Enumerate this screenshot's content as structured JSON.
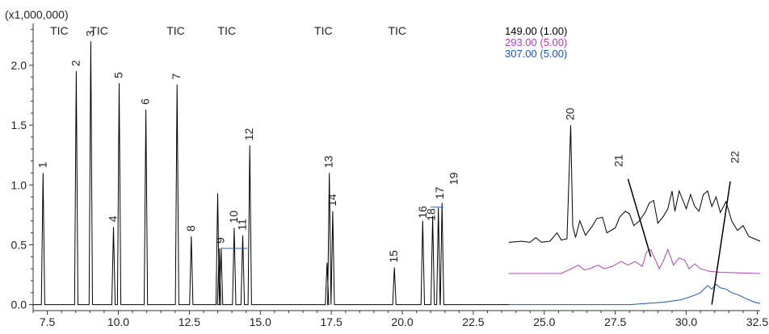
{
  "chart_data": {
    "type": "line",
    "y_multiplier_label": "(x1,000,000)",
    "xlim": [
      7.0,
      32.6
    ],
    "ylim": [
      -0.05,
      2.35
    ],
    "x_ticks": [
      7.5,
      10.0,
      12.5,
      15.0,
      17.5,
      20.0,
      22.5,
      25.0,
      27.5,
      30.0,
      32.5
    ],
    "x_tick_labels": [
      "7.5",
      "10.0",
      "12.5",
      "15.0",
      "17.5",
      "20.0",
      "22.5",
      "25.0",
      "27.5",
      "30.0",
      "32.5"
    ],
    "y_ticks": [
      0.0,
      0.5,
      1.0,
      1.5,
      2.0
    ],
    "y_tick_labels": [
      "0.0",
      "0.5",
      "1.0",
      "1.5",
      "2.0"
    ],
    "segment_labels": [
      {
        "text": "TIC",
        "x": 7.6
      },
      {
        "text": "TIC",
        "x": 9.0
      },
      {
        "text": "TIC",
        "x": 11.7
      },
      {
        "text": "TIC",
        "x": 13.5
      },
      {
        "text": "TIC",
        "x": 16.9
      },
      {
        "text": "TIC",
        "x": 19.5
      }
    ],
    "legend": [
      {
        "text": "149.00 (1.00)",
        "color": "#000000"
      },
      {
        "text": "293.00 (5.00)",
        "color": "#b040b0"
      },
      {
        "text": "307.00 (5.00)",
        "color": "#1a55b5"
      }
    ],
    "colors": {
      "tic": "#000000",
      "ion149": "#000000",
      "ion293": "#b040b0",
      "ion307": "#1a55b5",
      "marker": "#2a5fb0"
    },
    "peaks": [
      {
        "label": "1",
        "x": 7.35,
        "y": 1.1
      },
      {
        "label": "2",
        "x": 8.52,
        "y": 1.95
      },
      {
        "label": "3",
        "x": 9.03,
        "y": 2.2
      },
      {
        "label": "4",
        "x": 9.83,
        "y": 0.65
      },
      {
        "label": "5",
        "x": 10.03,
        "y": 1.85
      },
      {
        "label": "6",
        "x": 10.97,
        "y": 1.63
      },
      {
        "label": "7",
        "x": 12.07,
        "y": 1.84
      },
      {
        "label": "8",
        "x": 12.57,
        "y": 0.57
      },
      {
        "label": "9",
        "x": 13.62,
        "y": 0.47
      },
      {
        "label": "10",
        "x": 14.08,
        "y": 0.64
      },
      {
        "label": "11",
        "x": 14.38,
        "y": 0.58
      },
      {
        "label": "12",
        "x": 14.63,
        "y": 1.33
      },
      {
        "label": "13",
        "x": 17.43,
        "y": 1.1
      },
      {
        "label": "14",
        "x": 17.55,
        "y": 0.78
      },
      {
        "label": "15",
        "x": 19.72,
        "y": 0.31
      },
      {
        "label": "16",
        "x": 20.72,
        "y": 0.7
      },
      {
        "label": "17",
        "x": 21.27,
        "y": 0.81
      },
      {
        "label": "18",
        "x": 21.07,
        "y": 0.74
      },
      {
        "label": "19",
        "x": 21.4,
        "y": 0.85
      },
      {
        "label": "20",
        "x": 25.93,
        "y": 1.5
      },
      {
        "label": "21",
        "x": 28.05,
        "y": 1.05
      },
      {
        "label": "22",
        "x": 31.9,
        "y": 0.88
      }
    ],
    "extra_peaks": [
      {
        "x": 13.5,
        "y": 0.93
      },
      {
        "x": 13.55,
        "y": 0.47
      },
      {
        "x": 17.35,
        "y": 0.35
      }
    ],
    "offset_traces": [
      {
        "name": "149.00",
        "color": "#000000",
        "baseline": 0.52,
        "x_start": 23.75,
        "x_end": 32.6,
        "points": [
          [
            23.75,
            0.52
          ],
          [
            24.2,
            0.53
          ],
          [
            24.5,
            0.52
          ],
          [
            24.7,
            0.56
          ],
          [
            24.9,
            0.52
          ],
          [
            25.2,
            0.53
          ],
          [
            25.45,
            0.6
          ],
          [
            25.6,
            0.54
          ],
          [
            25.8,
            0.55
          ],
          [
            25.93,
            1.5
          ],
          [
            26.0,
            0.66
          ],
          [
            26.1,
            0.56
          ],
          [
            26.25,
            0.7
          ],
          [
            26.45,
            0.58
          ],
          [
            26.7,
            0.66
          ],
          [
            26.85,
            0.72
          ],
          [
            27.05,
            0.73
          ],
          [
            27.2,
            0.6
          ],
          [
            27.5,
            0.64
          ],
          [
            27.65,
            0.73
          ],
          [
            27.85,
            0.78
          ],
          [
            28.0,
            0.76
          ],
          [
            28.15,
            0.66
          ],
          [
            28.35,
            0.7
          ],
          [
            28.55,
            0.77
          ],
          [
            28.7,
            0.85
          ],
          [
            28.85,
            0.87
          ],
          [
            29.0,
            0.68
          ],
          [
            29.2,
            0.74
          ],
          [
            29.35,
            0.8
          ],
          [
            29.5,
            0.95
          ],
          [
            29.6,
            0.78
          ],
          [
            29.75,
            0.95
          ],
          [
            29.9,
            0.86
          ],
          [
            30.0,
            0.8
          ],
          [
            30.15,
            0.92
          ],
          [
            30.3,
            0.82
          ],
          [
            30.45,
            0.78
          ],
          [
            30.6,
            0.92
          ],
          [
            30.75,
            0.95
          ],
          [
            30.9,
            0.82
          ],
          [
            31.05,
            0.9
          ],
          [
            31.2,
            0.77
          ],
          [
            31.4,
            0.86
          ],
          [
            31.6,
            0.7
          ],
          [
            31.8,
            0.62
          ],
          [
            32.0,
            0.66
          ],
          [
            32.2,
            0.57
          ],
          [
            32.6,
            0.53
          ]
        ]
      },
      {
        "name": "293.00",
        "color": "#b040b0",
        "baseline": 0.26,
        "x_start": 23.75,
        "x_end": 32.6,
        "points": [
          [
            23.75,
            0.26
          ],
          [
            25.6,
            0.26
          ],
          [
            25.95,
            0.3
          ],
          [
            26.2,
            0.33
          ],
          [
            26.4,
            0.29
          ],
          [
            26.6,
            0.3
          ],
          [
            26.9,
            0.33
          ],
          [
            27.1,
            0.3
          ],
          [
            27.4,
            0.32
          ],
          [
            27.7,
            0.36
          ],
          [
            27.95,
            0.33
          ],
          [
            28.2,
            0.36
          ],
          [
            28.45,
            0.32
          ],
          [
            28.6,
            0.44
          ],
          [
            28.75,
            0.46
          ],
          [
            28.9,
            0.38
          ],
          [
            29.05,
            0.3
          ],
          [
            29.2,
            0.37
          ],
          [
            29.35,
            0.46
          ],
          [
            29.55,
            0.33
          ],
          [
            29.75,
            0.39
          ],
          [
            29.95,
            0.37
          ],
          [
            30.1,
            0.3
          ],
          [
            30.3,
            0.34
          ],
          [
            30.5,
            0.3
          ],
          [
            30.8,
            0.28
          ],
          [
            31.2,
            0.27
          ],
          [
            32.6,
            0.26
          ]
        ]
      },
      {
        "name": "307.00",
        "color": "#1a55b5",
        "baseline": 0.0,
        "x_start": 23.75,
        "x_end": 32.6,
        "points": [
          [
            23.75,
            0.0
          ],
          [
            28.0,
            0.0
          ],
          [
            28.6,
            0.01
          ],
          [
            29.2,
            0.02
          ],
          [
            29.8,
            0.04
          ],
          [
            30.2,
            0.07
          ],
          [
            30.5,
            0.1
          ],
          [
            30.75,
            0.16
          ],
          [
            30.9,
            0.13
          ],
          [
            31.05,
            0.17
          ],
          [
            31.2,
            0.14
          ],
          [
            31.4,
            0.13
          ],
          [
            31.6,
            0.1
          ],
          [
            31.85,
            0.08
          ],
          [
            32.1,
            0.05
          ],
          [
            32.4,
            0.02
          ],
          [
            32.6,
            0.01
          ]
        ]
      }
    ]
  }
}
